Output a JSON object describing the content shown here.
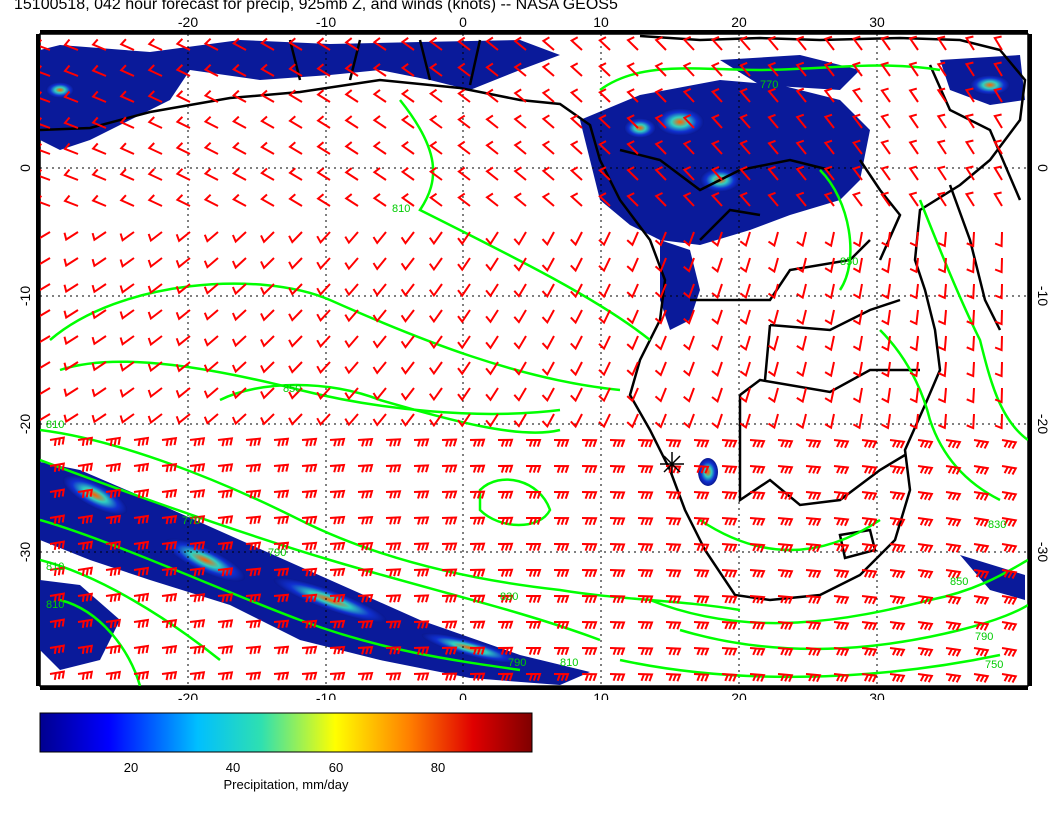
{
  "title": "15100518, 042 hour forecast for precip, 925mb Z, and winds (knots) -- NASA GEOS5",
  "map": {
    "lon_ticks": [
      "-20",
      "-10",
      "0",
      "10",
      "20",
      "30"
    ],
    "lat_ticks_left": [
      "0",
      "-10",
      "-20",
      "-30"
    ],
    "lat_ticks_right": [
      "0",
      "-10",
      "-20",
      "-30"
    ],
    "contour_labels": [
      "810",
      "850",
      "850",
      "810",
      "770",
      "790",
      "810",
      "830",
      "850",
      "750",
      "790",
      "830",
      "810",
      "790",
      "770",
      "810"
    ],
    "colors": {
      "wind_barbs": "#ff0000",
      "contours": "#00ff00",
      "coast": "#000000",
      "grid": "#000000"
    }
  },
  "colorbar": {
    "ticks": [
      "20",
      "40",
      "60",
      "80"
    ],
    "label": "Precipitation, mm/day",
    "colors": [
      "#00008f",
      "#0000ff",
      "#00bfff",
      "#2fe0b0",
      "#ffff00",
      "#ff8000",
      "#e00000",
      "#7f0000"
    ]
  }
}
